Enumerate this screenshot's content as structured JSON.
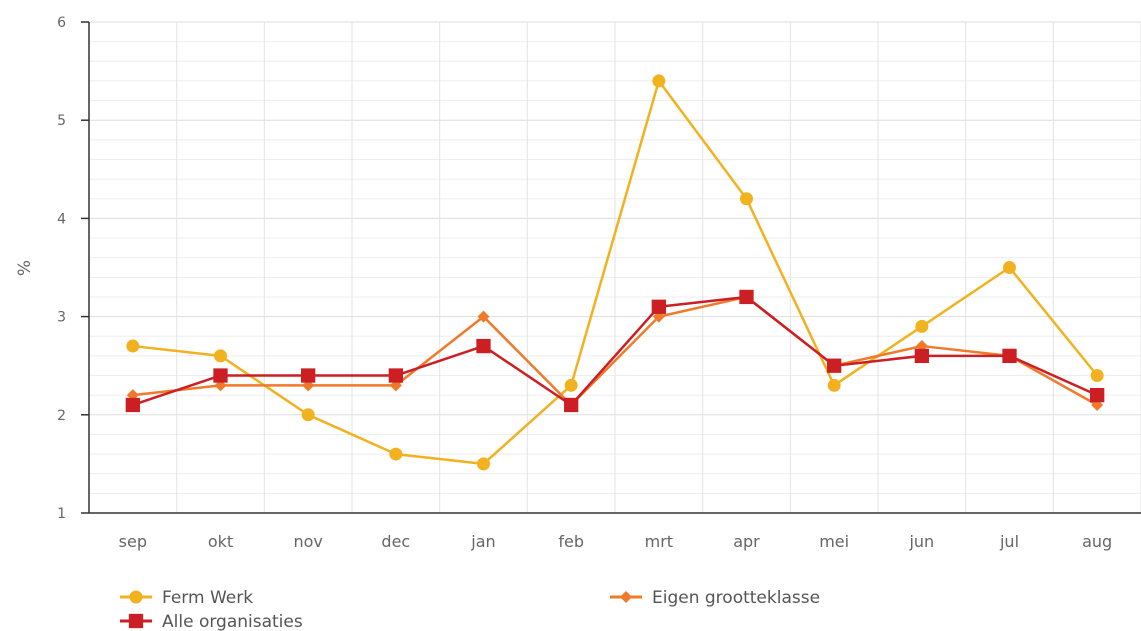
{
  "chart_data": {
    "type": "line",
    "title": "",
    "xlabel": "",
    "ylabel": "%",
    "ylim": [
      1,
      6
    ],
    "yticks": [
      "1",
      "2",
      "3",
      "4",
      "5",
      "6"
    ],
    "grid": true,
    "legend_position": "bottom",
    "categories": [
      "sep",
      "okt",
      "nov",
      "dec",
      "jan",
      "feb",
      "mrt",
      "apr",
      "mei",
      "jun",
      "jul",
      "aug"
    ],
    "series": [
      {
        "name": "Ferm Werk",
        "color": "#f2b21f",
        "marker": "circle",
        "values": [
          2.7,
          2.6,
          2.0,
          1.6,
          1.5,
          2.3,
          5.4,
          4.2,
          2.3,
          2.9,
          3.5,
          2.4
        ]
      },
      {
        "name": "Eigen grootteklasse",
        "color": "#f07a2a",
        "marker": "diamond",
        "values": [
          2.2,
          2.3,
          2.3,
          2.3,
          3.0,
          2.1,
          3.0,
          3.2,
          2.5,
          2.7,
          2.6,
          2.1
        ]
      },
      {
        "name": "Alle organisaties",
        "color": "#cc1f24",
        "marker": "square",
        "values": [
          2.1,
          2.4,
          2.4,
          2.4,
          2.7,
          2.1,
          3.1,
          3.2,
          2.5,
          2.6,
          2.6,
          2.2
        ]
      }
    ]
  }
}
